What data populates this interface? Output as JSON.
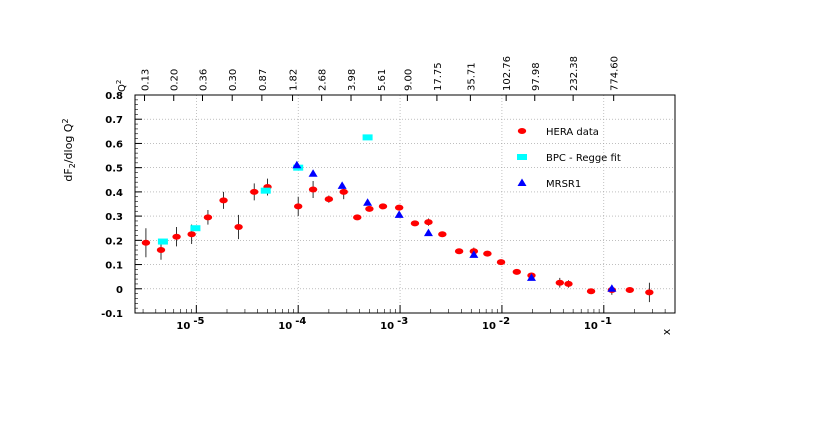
{
  "chart_data": {
    "type": "scatter",
    "title": "",
    "ylabel": "dF2/dlog Q2",
    "xlabel": "x",
    "x_scale": "log",
    "xlim": [
      2.5e-06,
      0.5
    ],
    "ylim": [
      -0.1,
      0.8
    ],
    "grid": true,
    "y_ticks": [
      "-0.1",
      "0",
      "0.1",
      "0.2",
      "0.3",
      "0.4",
      "0.5",
      "0.6",
      "0.7",
      "0.8"
    ],
    "x_ticks": [
      {
        "base": "10",
        "exp": "-5",
        "value": 1e-05
      },
      {
        "base": "10",
        "exp": "-4",
        "value": 0.0001
      },
      {
        "base": "10",
        "exp": "-3",
        "value": 0.001
      },
      {
        "base": "10",
        "exp": "-2",
        "value": 0.01
      },
      {
        "base": "10",
        "exp": "-1",
        "value": 0.1
      }
    ],
    "top_axis": {
      "label": "Q2",
      "ticks": [
        {
          "label": "0.13",
          "x": 3.1e-06
        },
        {
          "label": "0.20",
          "x": 6e-06
        },
        {
          "label": "0.36",
          "x": 1.15e-05
        },
        {
          "label": "0.30",
          "x": 2.25e-05
        },
        {
          "label": "0.87",
          "x": 4.4e-05
        },
        {
          "label": "1.82",
          "x": 8.8e-05
        },
        {
          "label": "2.68",
          "x": 0.00017
        },
        {
          "label": "3.98",
          "x": 0.00033
        },
        {
          "label": "5.61",
          "x": 0.00065
        },
        {
          "label": "9.00",
          "x": 0.00118
        },
        {
          "label": "17.75",
          "x": 0.0023
        },
        {
          "label": "35.71",
          "x": 0.0049
        },
        {
          "label": "102.76",
          "x": 0.011
        },
        {
          "label": "97.98",
          "x": 0.021
        },
        {
          "label": "232.38",
          "x": 0.05
        },
        {
          "label": "774.60",
          "x": 0.125
        }
      ]
    },
    "legend": {
      "placement": "right",
      "entries": [
        {
          "name": "HERA data",
          "marker": "ellipse",
          "color": "#ff0000"
        },
        {
          "name": "BPC - Regge fit",
          "marker": "rect",
          "color": "#00ffff"
        },
        {
          "name": "MRSR1",
          "marker": "triangle",
          "color": "#0000ff"
        }
      ]
    },
    "series": [
      {
        "name": "HERA data",
        "marker": "ellipse",
        "color": "#ff0000",
        "points": [
          {
            "x": 3.2e-06,
            "y": 0.19,
            "err": 0.06
          },
          {
            "x": 4.5e-06,
            "y": 0.16,
            "err": 0.04
          },
          {
            "x": 6.4e-06,
            "y": 0.215,
            "err": 0.04
          },
          {
            "x": 9e-06,
            "y": 0.225,
            "err": 0.04
          },
          {
            "x": 1.3e-05,
            "y": 0.295,
            "err": 0.03
          },
          {
            "x": 1.85e-05,
            "y": 0.365,
            "err": 0.035
          },
          {
            "x": 2.6e-05,
            "y": 0.255,
            "err": 0.05
          },
          {
            "x": 3.7e-05,
            "y": 0.4,
            "err": 0.035
          },
          {
            "x": 5e-05,
            "y": 0.42,
            "err": 0.035
          },
          {
            "x": 0.0001,
            "y": 0.34,
            "err": 0.04
          },
          {
            "x": 0.00014,
            "y": 0.41,
            "err": 0.035
          },
          {
            "x": 0.0002,
            "y": 0.37,
            "err": 0.015
          },
          {
            "x": 0.00028,
            "y": 0.4,
            "err": 0.03
          },
          {
            "x": 0.00038,
            "y": 0.295,
            "err": 0.01
          },
          {
            "x": 0.0005,
            "y": 0.33,
            "err": 0.01
          },
          {
            "x": 0.00068,
            "y": 0.34,
            "err": 0.01
          },
          {
            "x": 0.00098,
            "y": 0.335,
            "err": 0.01
          },
          {
            "x": 0.0014,
            "y": 0.27,
            "err": 0.01
          },
          {
            "x": 0.0019,
            "y": 0.275,
            "err": 0.015
          },
          {
            "x": 0.0026,
            "y": 0.225,
            "err": 0.01
          },
          {
            "x": 0.0038,
            "y": 0.155,
            "err": 0.01
          },
          {
            "x": 0.0053,
            "y": 0.155,
            "err": 0.015
          },
          {
            "x": 0.0072,
            "y": 0.145,
            "err": 0.01
          },
          {
            "x": 0.0098,
            "y": 0.11,
            "err": 0.01
          },
          {
            "x": 0.014,
            "y": 0.07,
            "err": 0.01
          },
          {
            "x": 0.0195,
            "y": 0.055,
            "err": 0.01
          },
          {
            "x": 0.037,
            "y": 0.025,
            "err": 0.02
          },
          {
            "x": 0.045,
            "y": 0.02,
            "err": 0.015
          },
          {
            "x": 0.075,
            "y": -0.01,
            "err": 0.005
          },
          {
            "x": 0.12,
            "y": -0.005,
            "err": 0.02
          },
          {
            "x": 0.18,
            "y": -0.005,
            "err": 0.005
          },
          {
            "x": 0.28,
            "y": -0.015,
            "err": 0.04
          }
        ]
      },
      {
        "name": "BPC - Regge fit",
        "marker": "rect",
        "color": "#00ffff",
        "points": [
          {
            "x": 4.7e-06,
            "y": 0.195
          },
          {
            "x": 9.8e-06,
            "y": 0.25
          },
          {
            "x": 4.8e-05,
            "y": 0.405
          },
          {
            "x": 0.0001,
            "y": 0.5
          },
          {
            "x": 0.00048,
            "y": 0.625
          }
        ]
      },
      {
        "name": "MRSR1",
        "marker": "triangle",
        "color": "#0000ff",
        "points": [
          {
            "x": 9.7e-05,
            "y": 0.51
          },
          {
            "x": 0.00014,
            "y": 0.475
          },
          {
            "x": 0.00027,
            "y": 0.425
          },
          {
            "x": 0.00048,
            "y": 0.355
          },
          {
            "x": 0.00098,
            "y": 0.305
          },
          {
            "x": 0.0019,
            "y": 0.23
          },
          {
            "x": 0.0053,
            "y": 0.14
          },
          {
            "x": 0.0195,
            "y": 0.045
          },
          {
            "x": 0.12,
            "y": 0.0
          }
        ]
      }
    ]
  }
}
